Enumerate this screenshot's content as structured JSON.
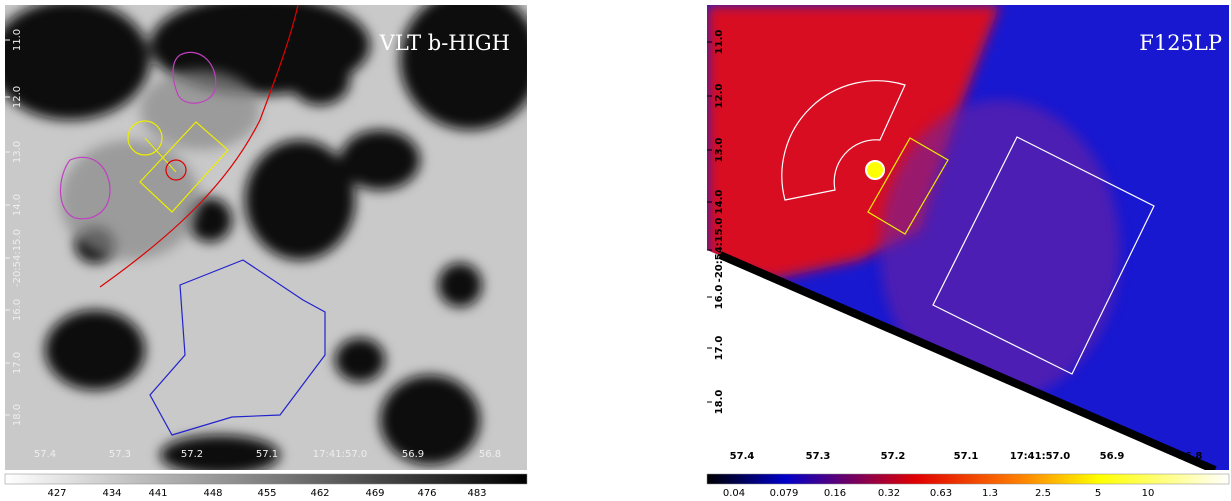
{
  "panels": [
    {
      "title": "VLT b-HIGH",
      "y_labels": [
        "11.0",
        "12.0",
        "13.0",
        "14.0",
        "-20:54:15.0",
        "16.0",
        "17.0",
        "18.0"
      ],
      "x_labels": [
        "57.4",
        "57.3",
        "57.2",
        "57.1",
        "17:41:57.0",
        "56.9",
        "56.8"
      ],
      "colorbar_labels": [
        "427",
        "434",
        "441",
        "448",
        "455",
        "462",
        "469",
        "476",
        "483"
      ]
    },
    {
      "title": "F125LP",
      "y_labels": [
        "11.0",
        "12.0",
        "13.0",
        "14.0",
        "-20:54:15.0",
        "16.0",
        "17.0",
        "18.0"
      ],
      "x_labels": [
        "57.4",
        "57.3",
        "57.2",
        "57.1",
        "17:41:57.0",
        "56.9",
        "56.8"
      ],
      "colorbar_labels": [
        "0.04",
        "0.079",
        "0.16",
        "0.32",
        "0.63",
        "1.3",
        "2.5",
        "5",
        "10"
      ]
    }
  ]
}
